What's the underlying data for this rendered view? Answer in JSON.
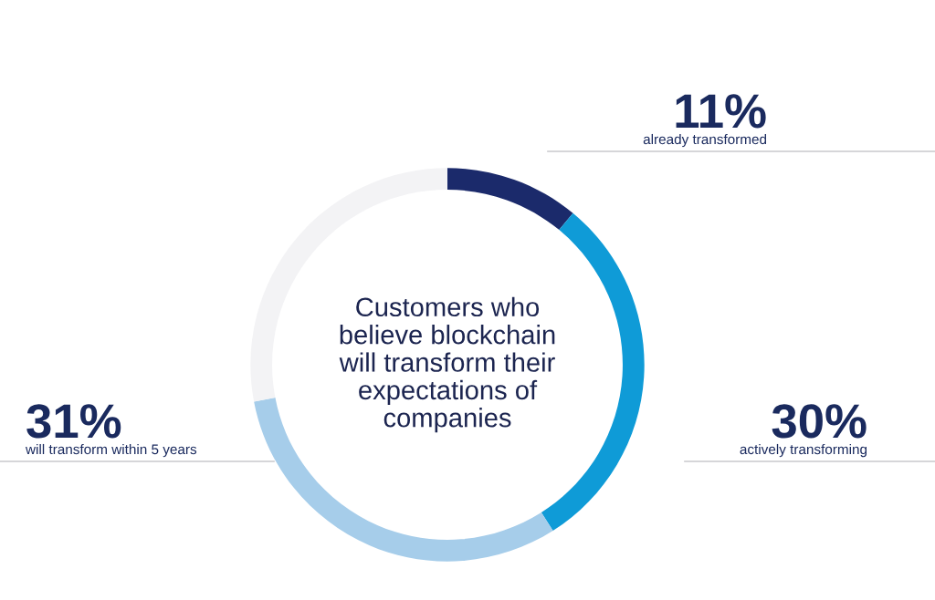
{
  "chart_data": {
    "type": "donut",
    "title": "Customers who\nbelieve blockchain\nwill transform their\nexpectations of\ncompanies",
    "categories": [
      "already transformed",
      "actively transforming",
      "will transform within 5 years",
      null
    ],
    "values": [
      11,
      30,
      31,
      28
    ],
    "value_labels": [
      "11%",
      "30%",
      "31%",
      null
    ],
    "colors": [
      "#1b2a6b",
      "#0f9bd7",
      "#a6cdea",
      "#f3f3f5"
    ],
    "legend": false
  }
}
